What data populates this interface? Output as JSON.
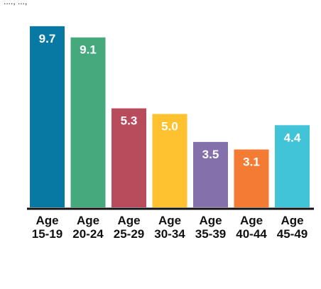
{
  "chart_data": {
    "type": "bar",
    "categories": [
      [
        "Age",
        "15-19"
      ],
      [
        "Age",
        "20-24"
      ],
      [
        "Age",
        "25-29"
      ],
      [
        "Age",
        "30-34"
      ],
      [
        "Age",
        "35-39"
      ],
      [
        "Age",
        "40-44"
      ],
      [
        "Age",
        "45-49"
      ]
    ],
    "values": [
      9.7,
      9.1,
      5.3,
      5.0,
      3.5,
      3.1,
      4.4
    ],
    "value_labels": [
      "9.7",
      "9.1",
      "5.3",
      "5.0",
      "3.5",
      "3.1",
      "4.4"
    ],
    "colors": [
      "#0779a3",
      "#46a97d",
      "#b84c5c",
      "#fec12f",
      "#8471ac",
      "#f37b33",
      "#41c3d8"
    ],
    "title": "",
    "xlabel": "",
    "ylabel": "",
    "ylim": [
      0,
      10
    ],
    "grid": false,
    "legend": "none"
  },
  "top_cut_text": "...., ...,"
}
